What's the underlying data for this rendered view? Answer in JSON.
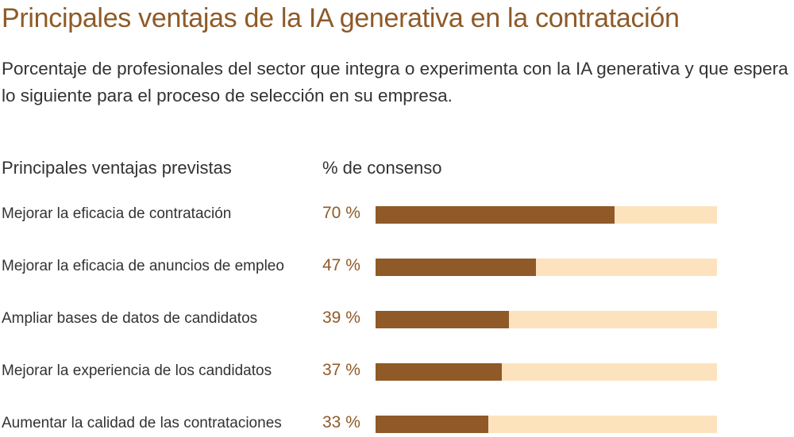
{
  "chart_data": {
    "type": "bar",
    "title": "Principales ventajas de la IA generativa en la contratación",
    "subtitle": "Porcentaje de profesionales del sector que integra o experimenta con la IA generativa y que espera lo siguiente para el proceso de selección en su empresa.",
    "xlabel": "% de consenso",
    "ylabel": "Principales ventajas previstas",
    "categories": [
      "Mejorar la eficacia de contratación",
      "Mejorar la eficacia de anuncios de empleo",
      "Ampliar bases de datos de candidatos",
      "Mejorar la experiencia de los candidatos",
      "Aumentar la calidad de las contrataciones"
    ],
    "values": [
      70,
      47,
      39,
      37,
      33
    ],
    "value_labels": [
      "70 %",
      "47 %",
      "39 %",
      "37 %",
      "33 %"
    ],
    "xlim": [
      0,
      100
    ],
    "colors": {
      "bar": "#8f5a27",
      "track": "#fde3bd"
    }
  }
}
